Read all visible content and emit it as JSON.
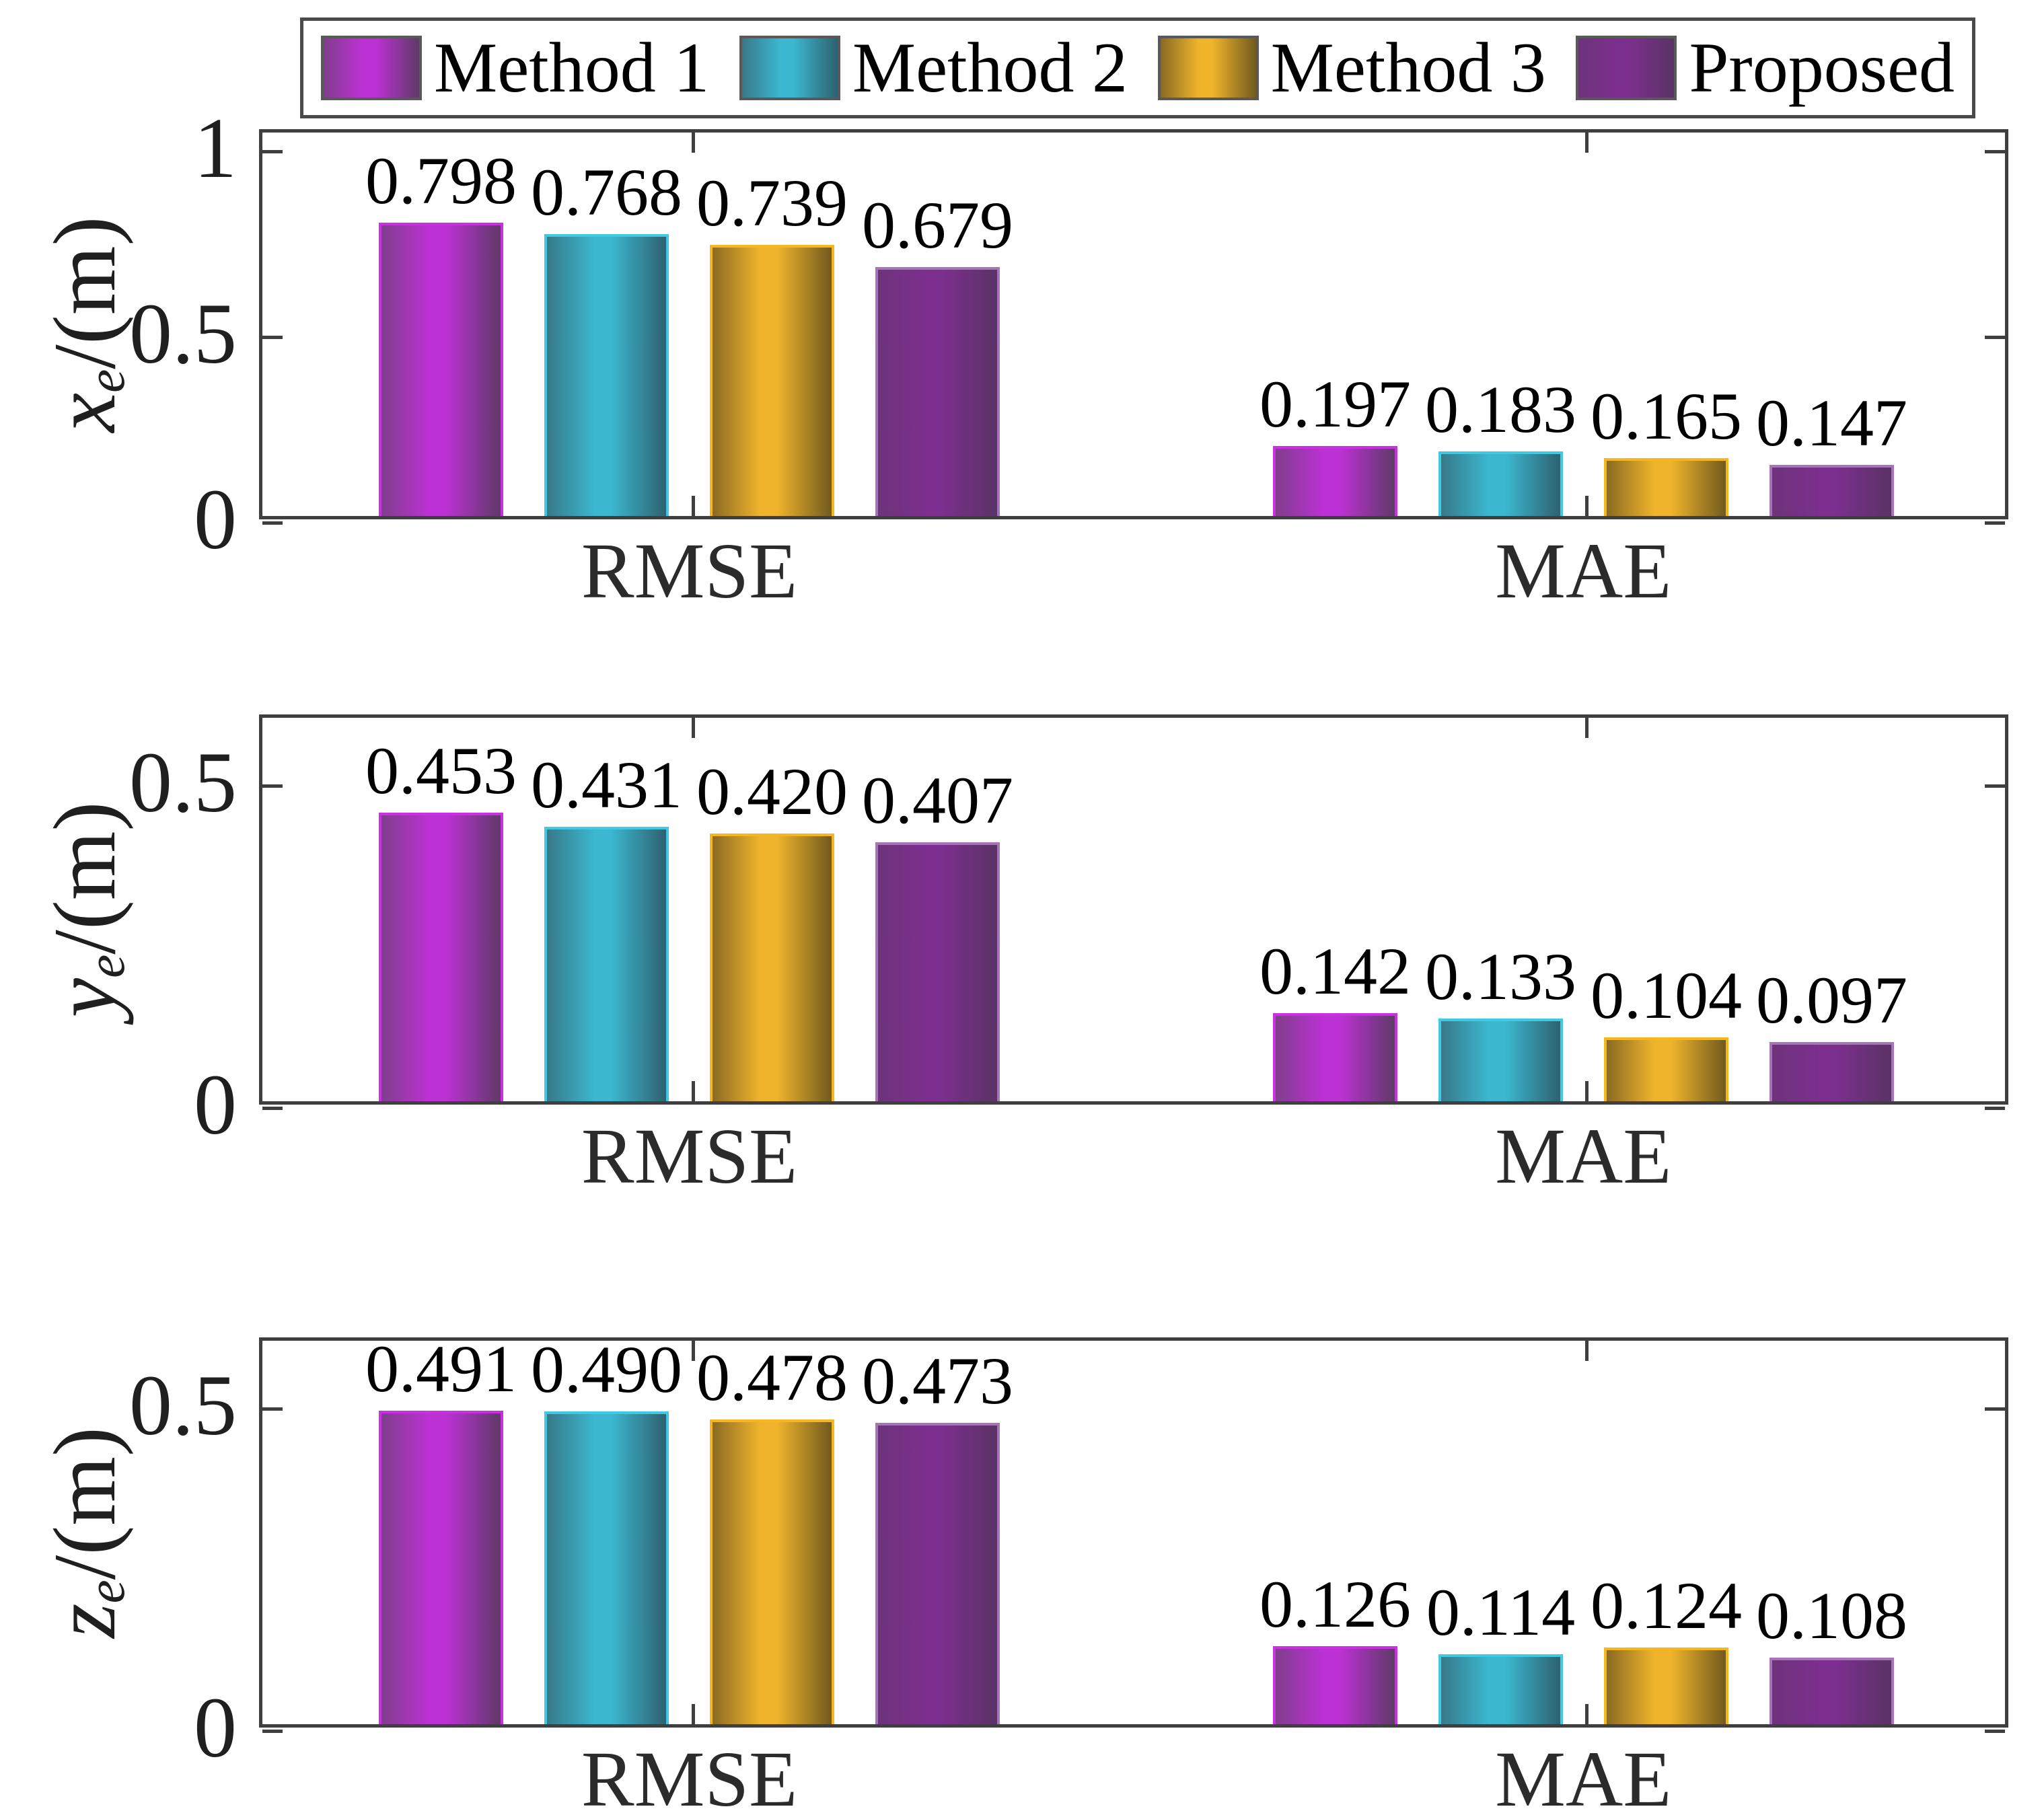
{
  "figure": {
    "background": "#ffffff"
  },
  "legend": {
    "items": [
      {
        "label": "Method 1",
        "color_key": "method1"
      },
      {
        "label": "Method 2",
        "color_key": "method2"
      },
      {
        "label": "Method 3",
        "color_key": "method3"
      },
      {
        "label": "Proposed",
        "color_key": "proposed"
      }
    ]
  },
  "colors": {
    "method1": {
      "edge": "#ca2fe2",
      "bright": "#bc31d4",
      "shadow_left": "#803d8c",
      "shadow_right": "#5f3a68"
    },
    "method2": {
      "edge": "#41c9e2",
      "bright": "#3bb7cf",
      "shadow_left": "#37798a",
      "shadow_right": "#2e6170"
    },
    "method3": {
      "edge": "#f6b61e",
      "bright": "#f0b42c",
      "shadow_left": "#8a6a22",
      "shadow_right": "#715a1e"
    },
    "proposed": {
      "edge": "#a874b8",
      "bright": "#7c2f8e",
      "shadow_left": "#6d337a",
      "shadow_right": "#5a3365"
    },
    "spine": "#3f3f3f"
  },
  "chart_data": [
    {
      "type": "bar",
      "title": "",
      "ylabel": "x_e/(m)",
      "ylabel_var": "x",
      "ylabel_sub": "e",
      "ylabel_unit": "/(m)",
      "categories": [
        "RMSE",
        "MAE"
      ],
      "series": [
        {
          "name": "Method 1",
          "values": [
            0.798,
            0.197
          ],
          "labels": [
            "0.798",
            "0.197"
          ]
        },
        {
          "name": "Method 2",
          "values": [
            0.768,
            0.183
          ],
          "labels": [
            "0.768",
            "0.183"
          ]
        },
        {
          "name": "Method 3",
          "values": [
            0.739,
            0.165
          ],
          "labels": [
            "0.739",
            "0.165"
          ]
        },
        {
          "name": "Proposed",
          "values": [
            0.679,
            0.147
          ],
          "labels": [
            "0.679",
            "0.147"
          ]
        }
      ],
      "ylim": [
        0,
        1.05
      ],
      "yticks": [
        {
          "value": 0,
          "label": "0"
        },
        {
          "value": 0.5,
          "label": "0.5"
        },
        {
          "value": 1,
          "label": "1"
        }
      ],
      "grid": false,
      "legend_position": "top",
      "bar_value_labels": true
    },
    {
      "type": "bar",
      "title": "",
      "ylabel": "y_e/(m)",
      "ylabel_var": "y",
      "ylabel_sub": "e",
      "ylabel_unit": "/(m)",
      "categories": [
        "RMSE",
        "MAE"
      ],
      "series": [
        {
          "name": "Method 1",
          "values": [
            0.453,
            0.142
          ],
          "labels": [
            "0.453",
            "0.142"
          ]
        },
        {
          "name": "Method 2",
          "values": [
            0.431,
            0.133
          ],
          "labels": [
            "0.431",
            "0.133"
          ]
        },
        {
          "name": "Method 3",
          "values": [
            0.42,
            0.104
          ],
          "labels": [
            "0.420",
            "0.104"
          ]
        },
        {
          "name": "Proposed",
          "values": [
            0.407,
            0.097
          ],
          "labels": [
            "0.407",
            "0.097"
          ]
        }
      ],
      "ylim": [
        0,
        0.605
      ],
      "yticks": [
        {
          "value": 0,
          "label": "0"
        },
        {
          "value": 0.5,
          "label": "0.5"
        }
      ],
      "grid": false,
      "legend_position": "none",
      "bar_value_labels": true
    },
    {
      "type": "bar",
      "title": "",
      "ylabel": "z_e/(m)",
      "ylabel_var": "z",
      "ylabel_sub": "e",
      "ylabel_unit": "/(m)",
      "categories": [
        "RMSE",
        "MAE"
      ],
      "series": [
        {
          "name": "Method 1",
          "values": [
            0.491,
            0.126
          ],
          "labels": [
            "0.491",
            "0.126"
          ]
        },
        {
          "name": "Method 2",
          "values": [
            0.49,
            0.114
          ],
          "labels": [
            "0.490",
            "0.114"
          ]
        },
        {
          "name": "Method 3",
          "values": [
            0.478,
            0.124
          ],
          "labels": [
            "0.478",
            "0.124"
          ]
        },
        {
          "name": "Proposed",
          "values": [
            0.473,
            0.108
          ],
          "labels": [
            "0.473",
            "0.108"
          ]
        }
      ],
      "ylim": [
        0,
        0.605
      ],
      "yticks": [
        {
          "value": 0,
          "label": "0"
        },
        {
          "value": 0.5,
          "label": "0.5"
        }
      ],
      "grid": false,
      "legend_position": "none",
      "bar_value_labels": true
    }
  ]
}
